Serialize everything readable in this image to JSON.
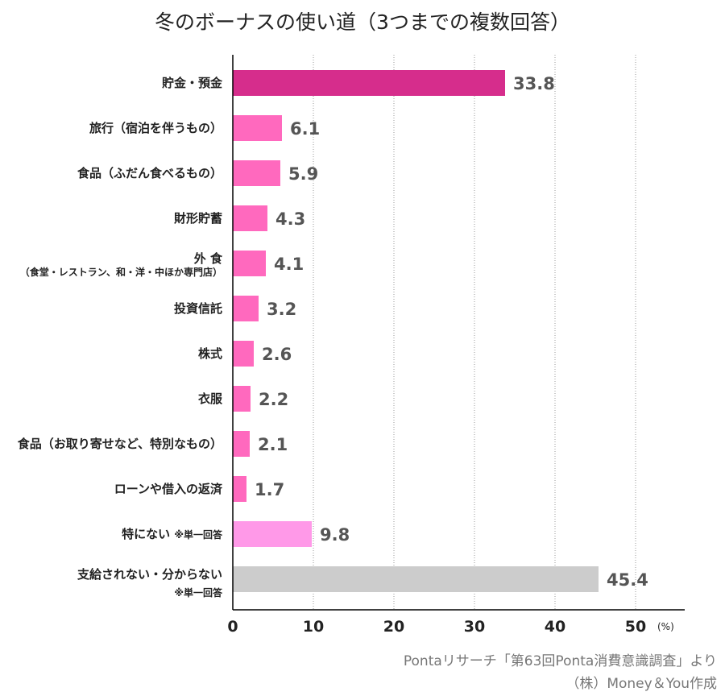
{
  "chart_data": {
    "type": "bar",
    "orientation": "horizontal",
    "title": "冬のボーナスの使い道（3つまでの複数回答）",
    "categories": [
      {
        "label": "貯金・預金",
        "sub": ""
      },
      {
        "label": "旅行（宿泊を伴うもの）",
        "sub": ""
      },
      {
        "label": "食品（ふだん食べるもの）",
        "sub": ""
      },
      {
        "label": "財形貯蓄",
        "sub": ""
      },
      {
        "label": "外 食",
        "sub": "（食堂・レストラン、和・洋・中ほか専門店）"
      },
      {
        "label": "投資信託",
        "sub": ""
      },
      {
        "label": "株式",
        "sub": ""
      },
      {
        "label": "衣服",
        "sub": ""
      },
      {
        "label": "食品（お取り寄せなど、特別なもの）",
        "sub": ""
      },
      {
        "label": "ローンや借入の返済",
        "sub": ""
      },
      {
        "label": "特にない",
        "note": "※単一回答"
      },
      {
        "label": "支給されない・分からない",
        "sub": "※単一回答"
      }
    ],
    "values": [
      33.8,
      6.1,
      5.9,
      4.3,
      4.1,
      3.2,
      2.6,
      2.2,
      2.1,
      1.7,
      9.8,
      45.4
    ],
    "value_labels": [
      "33.8",
      "6.1",
      "5.9",
      "4.3",
      "4.1",
      "3.2",
      "2.6",
      "2.2",
      "2.1",
      "1.7",
      "9.8",
      "45.4"
    ],
    "colors": [
      "#d62d8c",
      "#ff69be",
      "#ff69be",
      "#ff69be",
      "#ff69be",
      "#ff69be",
      "#ff69be",
      "#ff69be",
      "#ff69be",
      "#ff69be",
      "#ff99e8",
      "#cccccc"
    ],
    "xlim": [
      0,
      55
    ],
    "xticks": [
      "0",
      "10",
      "20",
      "30",
      "40",
      "50"
    ],
    "xunit": "(%)",
    "grid": "vertical dotted"
  },
  "source": {
    "line1": "Pontaリサーチ「第63回Ponta消費意識調査」より",
    "line2": "（株）Money＆You作成"
  }
}
